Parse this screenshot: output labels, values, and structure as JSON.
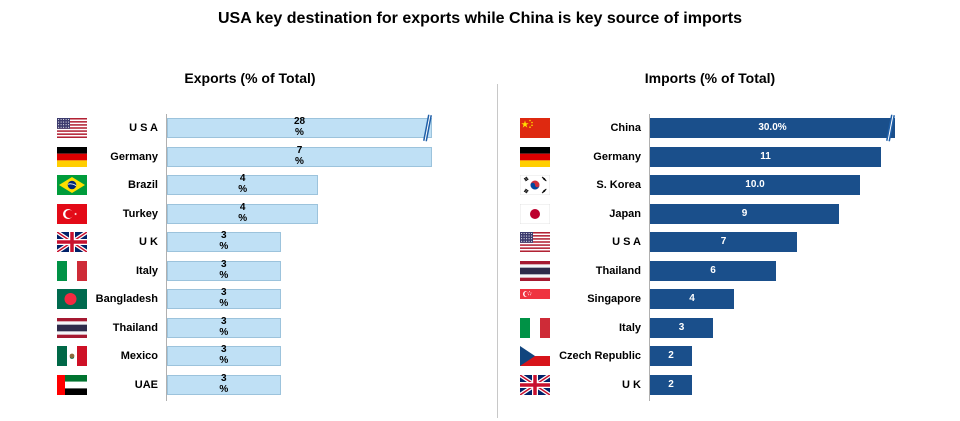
{
  "title": "USA key destination for exports while China is key source of imports",
  "chart_data": [
    {
      "type": "bar",
      "orientation": "horizontal",
      "title": "Exports (% of Total)",
      "categories": [
        "U S A",
        "Germany",
        "Brazil",
        "Turkey",
        "U K",
        "Italy",
        "Bangladesh",
        "Thailand",
        "Mexico",
        "UAE"
      ],
      "values": [
        28,
        7,
        4,
        4,
        3,
        3,
        3,
        3,
        3,
        3
      ],
      "labels": [
        "28\n%",
        "7\n%",
        "4\n%",
        "4\n%",
        "3\n%",
        "3\n%",
        "3\n%",
        "3\n%",
        "3\n%",
        "3\n%"
      ],
      "axis_break_on": "U S A",
      "bar_color": "#bfe0f5",
      "flags": [
        "usa-flag",
        "germany-flag",
        "brazil-flag",
        "turkey-flag",
        "uk-flag",
        "italy-flag",
        "bangladesh-flag",
        "thailand-flag",
        "mexico-flag",
        "uae-flag"
      ]
    },
    {
      "type": "bar",
      "orientation": "horizontal",
      "title": "Imports (% of Total)",
      "categories": [
        "China",
        "Germany",
        "S. Korea",
        "Japan",
        "U S A",
        "Thailand",
        "Singapore",
        "Italy",
        "Czech Republic",
        "U K"
      ],
      "values": [
        30.0,
        11,
        10.0,
        9,
        7,
        6,
        4,
        3,
        2,
        2
      ],
      "labels": [
        "30.0%",
        "11",
        "10.0",
        "9",
        "7",
        "6",
        "4",
        "3",
        "2",
        "2"
      ],
      "axis_break_on": "China",
      "bar_color": "#1a4f8b",
      "flags": [
        "china-flag",
        "germany-flag",
        "south-korea-flag",
        "japan-flag",
        "usa-flag",
        "thailand-flag",
        "singapore-flag",
        "italy-flag",
        "czech-republic-flag",
        "uk-flag"
      ]
    }
  ]
}
